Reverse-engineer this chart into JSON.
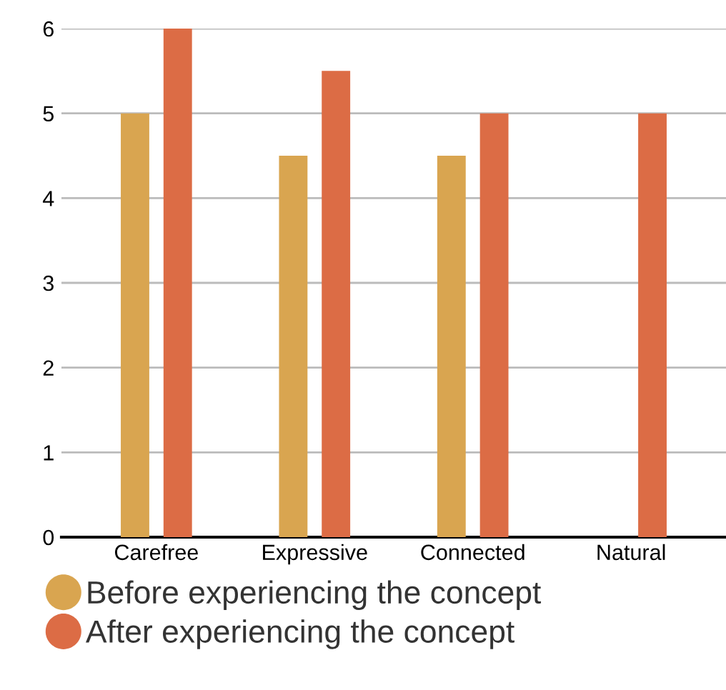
{
  "chart_data": {
    "type": "bar",
    "categories": [
      "Carefree",
      "Expressive",
      "Connected",
      "Natural"
    ],
    "series": [
      {
        "name": "Before experiencing the concept",
        "color": "#d9a550",
        "values": [
          5,
          4.5,
          4.5,
          null
        ]
      },
      {
        "name": "After experiencing the concept",
        "color": "#dc6c45",
        "values": [
          6,
          5.5,
          5,
          5
        ]
      }
    ],
    "ylim": [
      0,
      6
    ],
    "yticks": [
      0,
      1,
      2,
      3,
      4,
      5,
      6
    ],
    "grid": "y",
    "legend": "bottom"
  }
}
